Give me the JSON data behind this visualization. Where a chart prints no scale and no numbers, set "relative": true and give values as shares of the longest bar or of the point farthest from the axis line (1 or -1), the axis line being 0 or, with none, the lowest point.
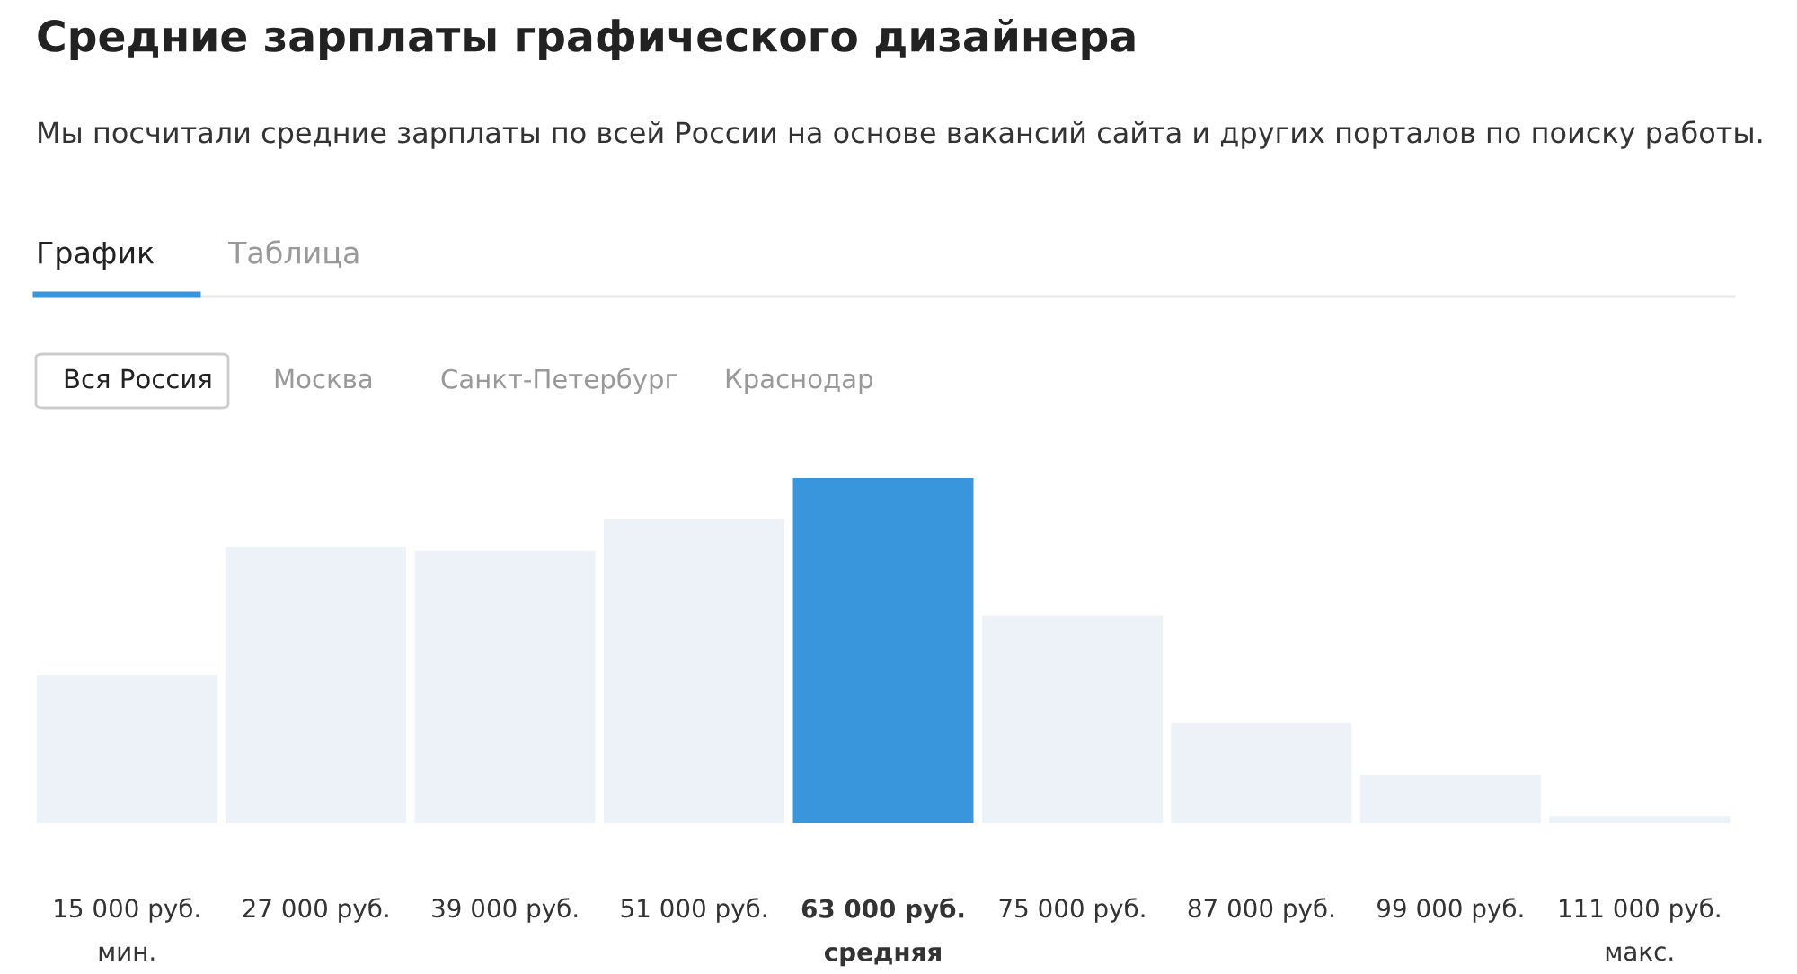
{
  "chart_data": {
    "type": "bar",
    "title": "Средние зарплаты графического дизайнера",
    "subtitle": "Мы посчитали средние зарплаты по всей России на основе вакансий сайта и других порталов по поиску работы.",
    "annotations": [
      "График",
      "Таблица",
      "Вся Россия",
      "Москва",
      "Санкт-Петербург",
      "Краснодар"
    ],
    "categories": [
      "15 000 руб.\nмин.",
      "27 000 руб.",
      "39 000 руб.",
      "51 000 руб.",
      "63 000 руб.\nсредняя",
      "75 000 руб.",
      "87 000 руб.",
      "99 000 руб.",
      "111 000 руб.\nмакс."
    ],
    "values": [
      0.43,
      0.8,
      0.79,
      0.88,
      1,
      0.6,
      0.29,
      0.14,
      0.02
    ],
    "colors": [
      "#edf2f8",
      "#edf2f8",
      "#edf2f8",
      "#edf2f8",
      "#3a96dc",
      "#edf2f8",
      "#edf2f8",
      "#edf2f8",
      "#edf2f8"
    ],
    "relative": true,
    "grid": false,
    "legend": false
  }
}
